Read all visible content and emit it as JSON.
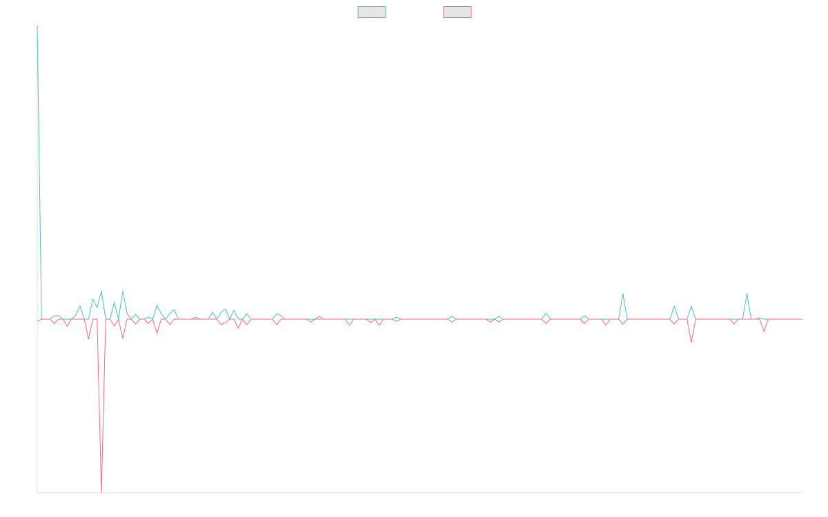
{
  "chart_data": {
    "type": "line",
    "ylim": [
      -252,
      426
    ],
    "legend": "top",
    "series": [
      {
        "color": "#4bc0c0",
        "values": [
          426,
          0,
          0,
          0,
          5,
          5,
          0,
          0,
          0,
          6,
          19,
          0,
          0,
          29,
          17,
          41,
          0,
          0,
          24,
          0,
          41,
          8,
          0,
          7,
          0,
          0,
          3,
          0,
          20,
          8,
          0,
          8,
          14,
          0,
          0,
          0,
          0,
          3,
          0,
          0,
          0,
          10,
          0,
          10,
          15,
          0,
          13,
          0,
          0,
          8,
          0,
          0,
          0,
          0,
          0,
          0,
          8,
          5,
          0,
          0,
          0,
          0,
          0,
          0,
          0,
          0,
          4,
          0,
          0,
          0,
          0,
          0,
          0,
          0,
          0,
          0,
          0,
          0,
          0,
          0,
          0,
          0,
          0,
          0,
          3,
          0,
          0,
          0,
          0,
          0,
          0,
          0,
          0,
          0,
          0,
          0,
          0,
          4,
          0,
          0,
          0,
          0,
          0,
          0,
          0,
          0,
          0,
          0,
          4,
          0,
          0,
          0,
          0,
          0,
          0,
          0,
          0,
          0,
          0,
          9,
          0,
          0,
          0,
          0,
          0,
          0,
          0,
          0,
          5,
          0,
          0,
          0,
          0,
          0,
          0,
          0,
          0,
          37,
          0,
          0,
          0,
          0,
          0,
          0,
          0,
          0,
          0,
          0,
          0,
          19,
          0,
          0,
          0,
          19,
          0,
          0,
          0,
          0,
          0,
          0,
          0,
          0,
          0,
          0,
          0,
          0,
          37,
          0,
          0,
          2,
          0,
          0,
          0,
          0,
          0,
          0,
          0,
          0,
          0,
          0
        ]
      },
      {
        "color": "#ff6384",
        "values": [
          -3,
          0,
          0,
          0,
          -6,
          0,
          0,
          -10,
          0,
          0,
          0,
          0,
          -29,
          0,
          0,
          -252,
          0,
          0,
          -10,
          0,
          -28,
          0,
          0,
          -7,
          0,
          0,
          -6,
          0,
          -20,
          0,
          0,
          -8,
          0,
          0,
          0,
          0,
          0,
          0,
          0,
          0,
          0,
          0,
          0,
          -8,
          -5,
          0,
          0,
          -13,
          0,
          -8,
          0,
          0,
          0,
          0,
          0,
          0,
          -8,
          0,
          0,
          0,
          0,
          0,
          0,
          0,
          -4,
          0,
          0,
          0,
          0,
          0,
          0,
          0,
          0,
          -9,
          0,
          0,
          0,
          0,
          -5,
          0,
          -9,
          0,
          0,
          0,
          -3,
          0,
          0,
          0,
          0,
          0,
          0,
          0,
          0,
          0,
          0,
          0,
          0,
          -4,
          0,
          0,
          0,
          0,
          0,
          0,
          0,
          0,
          -4,
          0,
          -4,
          0,
          0,
          0,
          0,
          0,
          0,
          0,
          0,
          0,
          0,
          -6,
          0,
          0,
          0,
          0,
          0,
          0,
          0,
          0,
          -6,
          0,
          0,
          0,
          0,
          -9,
          0,
          0,
          0,
          -7,
          0,
          0,
          0,
          0,
          0,
          0,
          0,
          0,
          0,
          0,
          0,
          -7,
          0,
          0,
          0,
          -34,
          0,
          0,
          0,
          0,
          0,
          0,
          0,
          0,
          0,
          -7,
          0,
          0,
          0,
          0,
          0,
          0,
          -18,
          0,
          0,
          0,
          0,
          0,
          0,
          0,
          0,
          0
        ]
      }
    ]
  }
}
